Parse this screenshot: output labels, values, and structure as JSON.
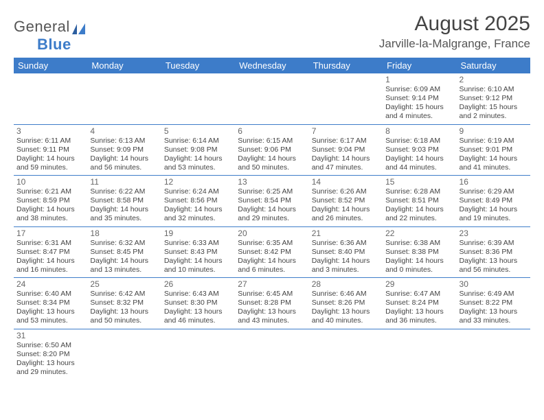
{
  "logo": {
    "word1": "General",
    "word2": "Blue"
  },
  "month_title": "August 2025",
  "location": "Jarville-la-Malgrange, France",
  "colors": {
    "header_bg": "#3d7cc9",
    "header_text": "#ffffff",
    "border": "#3d7cc9",
    "text": "#444444",
    "background": "#ffffff"
  },
  "day_headers": [
    "Sunday",
    "Monday",
    "Tuesday",
    "Wednesday",
    "Thursday",
    "Friday",
    "Saturday"
  ],
  "weeks": [
    [
      null,
      null,
      null,
      null,
      null,
      {
        "n": "1",
        "sr": "6:09 AM",
        "ss": "9:14 PM",
        "dl": "15 hours and 4 minutes."
      },
      {
        "n": "2",
        "sr": "6:10 AM",
        "ss": "9:12 PM",
        "dl": "15 hours and 2 minutes."
      }
    ],
    [
      {
        "n": "3",
        "sr": "6:11 AM",
        "ss": "9:11 PM",
        "dl": "14 hours and 59 minutes."
      },
      {
        "n": "4",
        "sr": "6:13 AM",
        "ss": "9:09 PM",
        "dl": "14 hours and 56 minutes."
      },
      {
        "n": "5",
        "sr": "6:14 AM",
        "ss": "9:08 PM",
        "dl": "14 hours and 53 minutes."
      },
      {
        "n": "6",
        "sr": "6:15 AM",
        "ss": "9:06 PM",
        "dl": "14 hours and 50 minutes."
      },
      {
        "n": "7",
        "sr": "6:17 AM",
        "ss": "9:04 PM",
        "dl": "14 hours and 47 minutes."
      },
      {
        "n": "8",
        "sr": "6:18 AM",
        "ss": "9:03 PM",
        "dl": "14 hours and 44 minutes."
      },
      {
        "n": "9",
        "sr": "6:19 AM",
        "ss": "9:01 PM",
        "dl": "14 hours and 41 minutes."
      }
    ],
    [
      {
        "n": "10",
        "sr": "6:21 AM",
        "ss": "8:59 PM",
        "dl": "14 hours and 38 minutes."
      },
      {
        "n": "11",
        "sr": "6:22 AM",
        "ss": "8:58 PM",
        "dl": "14 hours and 35 minutes."
      },
      {
        "n": "12",
        "sr": "6:24 AM",
        "ss": "8:56 PM",
        "dl": "14 hours and 32 minutes."
      },
      {
        "n": "13",
        "sr": "6:25 AM",
        "ss": "8:54 PM",
        "dl": "14 hours and 29 minutes."
      },
      {
        "n": "14",
        "sr": "6:26 AM",
        "ss": "8:52 PM",
        "dl": "14 hours and 26 minutes."
      },
      {
        "n": "15",
        "sr": "6:28 AM",
        "ss": "8:51 PM",
        "dl": "14 hours and 22 minutes."
      },
      {
        "n": "16",
        "sr": "6:29 AM",
        "ss": "8:49 PM",
        "dl": "14 hours and 19 minutes."
      }
    ],
    [
      {
        "n": "17",
        "sr": "6:31 AM",
        "ss": "8:47 PM",
        "dl": "14 hours and 16 minutes."
      },
      {
        "n": "18",
        "sr": "6:32 AM",
        "ss": "8:45 PM",
        "dl": "14 hours and 13 minutes."
      },
      {
        "n": "19",
        "sr": "6:33 AM",
        "ss": "8:43 PM",
        "dl": "14 hours and 10 minutes."
      },
      {
        "n": "20",
        "sr": "6:35 AM",
        "ss": "8:42 PM",
        "dl": "14 hours and 6 minutes."
      },
      {
        "n": "21",
        "sr": "6:36 AM",
        "ss": "8:40 PM",
        "dl": "14 hours and 3 minutes."
      },
      {
        "n": "22",
        "sr": "6:38 AM",
        "ss": "8:38 PM",
        "dl": "14 hours and 0 minutes."
      },
      {
        "n": "23",
        "sr": "6:39 AM",
        "ss": "8:36 PM",
        "dl": "13 hours and 56 minutes."
      }
    ],
    [
      {
        "n": "24",
        "sr": "6:40 AM",
        "ss": "8:34 PM",
        "dl": "13 hours and 53 minutes."
      },
      {
        "n": "25",
        "sr": "6:42 AM",
        "ss": "8:32 PM",
        "dl": "13 hours and 50 minutes."
      },
      {
        "n": "26",
        "sr": "6:43 AM",
        "ss": "8:30 PM",
        "dl": "13 hours and 46 minutes."
      },
      {
        "n": "27",
        "sr": "6:45 AM",
        "ss": "8:28 PM",
        "dl": "13 hours and 43 minutes."
      },
      {
        "n": "28",
        "sr": "6:46 AM",
        "ss": "8:26 PM",
        "dl": "13 hours and 40 minutes."
      },
      {
        "n": "29",
        "sr": "6:47 AM",
        "ss": "8:24 PM",
        "dl": "13 hours and 36 minutes."
      },
      {
        "n": "30",
        "sr": "6:49 AM",
        "ss": "8:22 PM",
        "dl": "13 hours and 33 minutes."
      }
    ],
    [
      {
        "n": "31",
        "sr": "6:50 AM",
        "ss": "8:20 PM",
        "dl": "13 hours and 29 minutes."
      },
      null,
      null,
      null,
      null,
      null,
      null
    ]
  ],
  "labels": {
    "sunrise": "Sunrise: ",
    "sunset": "Sunset: ",
    "daylight": "Daylight: "
  }
}
